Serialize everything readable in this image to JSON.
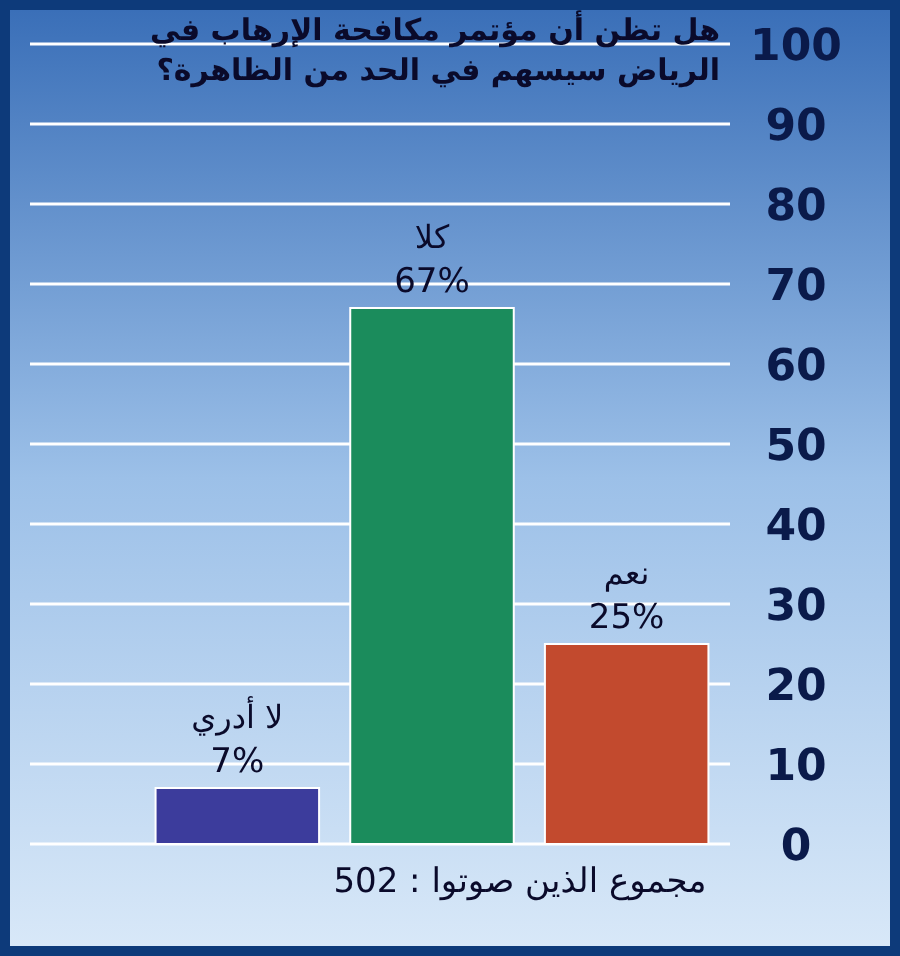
{
  "chart_data": {
    "type": "bar",
    "title": "هل تظن أن مؤتمر مكافحة الإرهاب في الرياض سيسهم في الحد من الظاهرة؟",
    "categories": [
      "لا أدري",
      "كلا",
      "نعم"
    ],
    "values": [
      7,
      67,
      25
    ],
    "colors": [
      "#3c3c9c",
      "#1b8c5c",
      "#c24a2e"
    ],
    "value_labels": [
      "7%",
      "67%",
      "25%"
    ],
    "ylim": [
      0,
      100
    ],
    "yticks": [
      0,
      10,
      20,
      30,
      40,
      50,
      60,
      70,
      80,
      90,
      100
    ],
    "grid": "y",
    "annotations": [
      "مجموع الذين صوتوا : 502"
    ]
  }
}
